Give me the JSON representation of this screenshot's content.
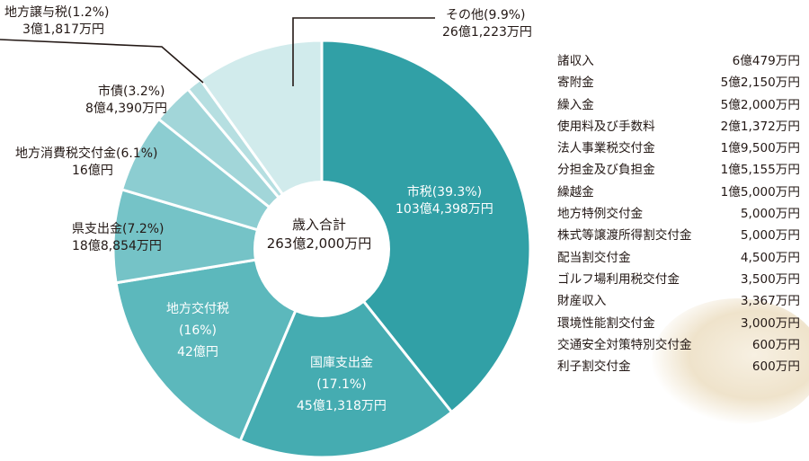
{
  "chart_data": {
    "type": "pie",
    "style": "donut",
    "center_label": {
      "title": "歳入合計",
      "total": "263億2,000万円"
    },
    "slices": [
      {
        "name": "市税(39.3%)",
        "amount": "103億4,398万円",
        "percent": 39.3,
        "color": "#31a0a6"
      },
      {
        "name": "国庫支出金",
        "percent_label": "(17.1%)",
        "amount": "45億1,318万円",
        "percent": 17.1,
        "color": "#45acb1"
      },
      {
        "name": "地方交付税",
        "percent_label": "(16%)",
        "amount": "42億円",
        "percent": 16.0,
        "color": "#5cb8bc"
      },
      {
        "name": "県支出金(7.2%)",
        "amount": "18億8,854万円",
        "percent": 7.2,
        "color": "#75c3c7"
      },
      {
        "name": "地方消費税交付金(6.1%)",
        "amount": "16億円",
        "percent": 6.1,
        "color": "#8ccdd1"
      },
      {
        "name": "市債(3.2%)",
        "amount": "8億4,390万円",
        "percent": 3.2,
        "color": "#a2d6d9"
      },
      {
        "name": "地方譲与税(1.2%)",
        "amount": "3億1,817万円",
        "percent": 1.2,
        "color": "#b6dfe1"
      },
      {
        "name": "その他(9.9%)",
        "amount": "26億1,223万円",
        "percent": 9.9,
        "color": "#d1ebec"
      }
    ]
  },
  "other_breakdown": [
    {
      "name": "諸収入",
      "amount": "6億479万円"
    },
    {
      "name": "寄附金",
      "amount": "5億2,150万円"
    },
    {
      "name": "繰入金",
      "amount": "5億2,000万円"
    },
    {
      "name": "使用料及び手数料",
      "amount": "2億1,372万円"
    },
    {
      "name": "法人事業税交付金",
      "amount": "1億9,500万円"
    },
    {
      "name": "分担金及び負担金",
      "amount": "1億5,155万円"
    },
    {
      "name": "繰越金",
      "amount": "1億5,000万円"
    },
    {
      "name": "地方特例交付金",
      "amount": "5,000万円"
    },
    {
      "name": "株式等譲渡所得割交付金",
      "amount": "5,000万円"
    },
    {
      "name": "配当割交付金",
      "amount": "4,500万円"
    },
    {
      "name": "ゴルフ場利用税交付金",
      "amount": "3,500万円"
    },
    {
      "name": "財産収入",
      "amount": "3,367万円"
    },
    {
      "name": "環境性能割交付金",
      "amount": "3,000万円"
    },
    {
      "name": "交通安全対策特別交付金",
      "amount": "600万円"
    },
    {
      "name": "利子割交付金",
      "amount": "600万円"
    }
  ]
}
